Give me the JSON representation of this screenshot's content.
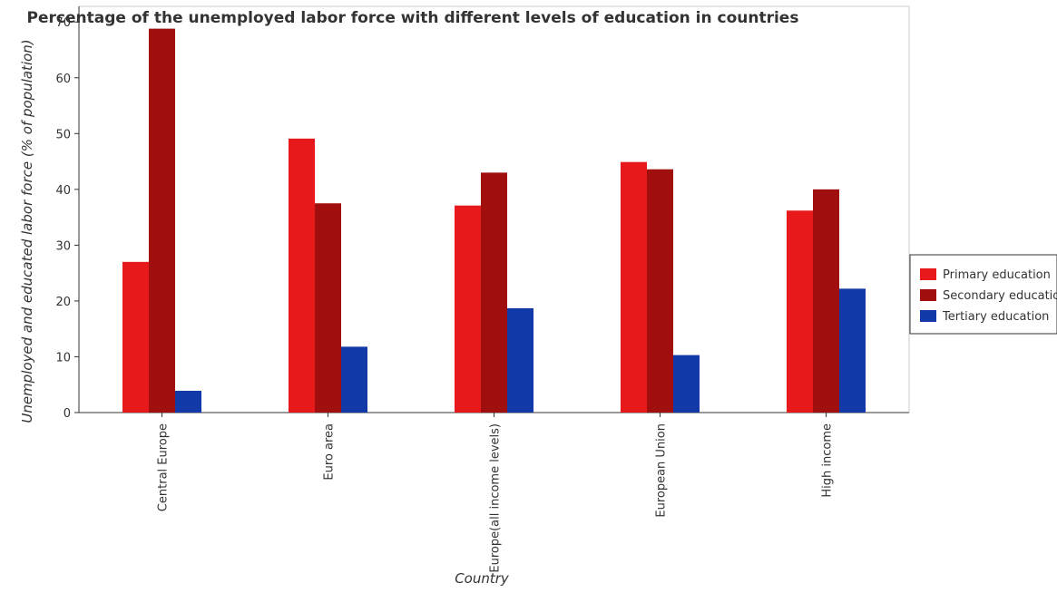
{
  "chart_data": {
    "type": "bar",
    "title": "Percentage of the unemployed labor force with different levels of education in countries",
    "xlabel": "Country",
    "ylabel": "Unemployed and educated labor force (% of population)",
    "categories": [
      "Central Europe",
      "Euro area",
      "Europe(all income levels)",
      "European Union",
      "High income"
    ],
    "series": [
      {
        "name": "Primary education",
        "color": "#e8191a",
        "values": [
          27.0,
          49.1,
          37.1,
          44.9,
          36.2
        ]
      },
      {
        "name": "Secondary education",
        "color": "#a00e0e",
        "values": [
          68.8,
          37.5,
          43.0,
          43.6,
          40.0
        ]
      },
      {
        "name": "Tertiary education",
        "color": "#1239a8",
        "values": [
          3.9,
          11.8,
          18.7,
          10.3,
          22.2
        ]
      }
    ],
    "ylim": [
      0,
      70
    ],
    "yticks": [
      0,
      10,
      20,
      30,
      40,
      50,
      60,
      70
    ],
    "grid": false,
    "legend_position": "right"
  }
}
